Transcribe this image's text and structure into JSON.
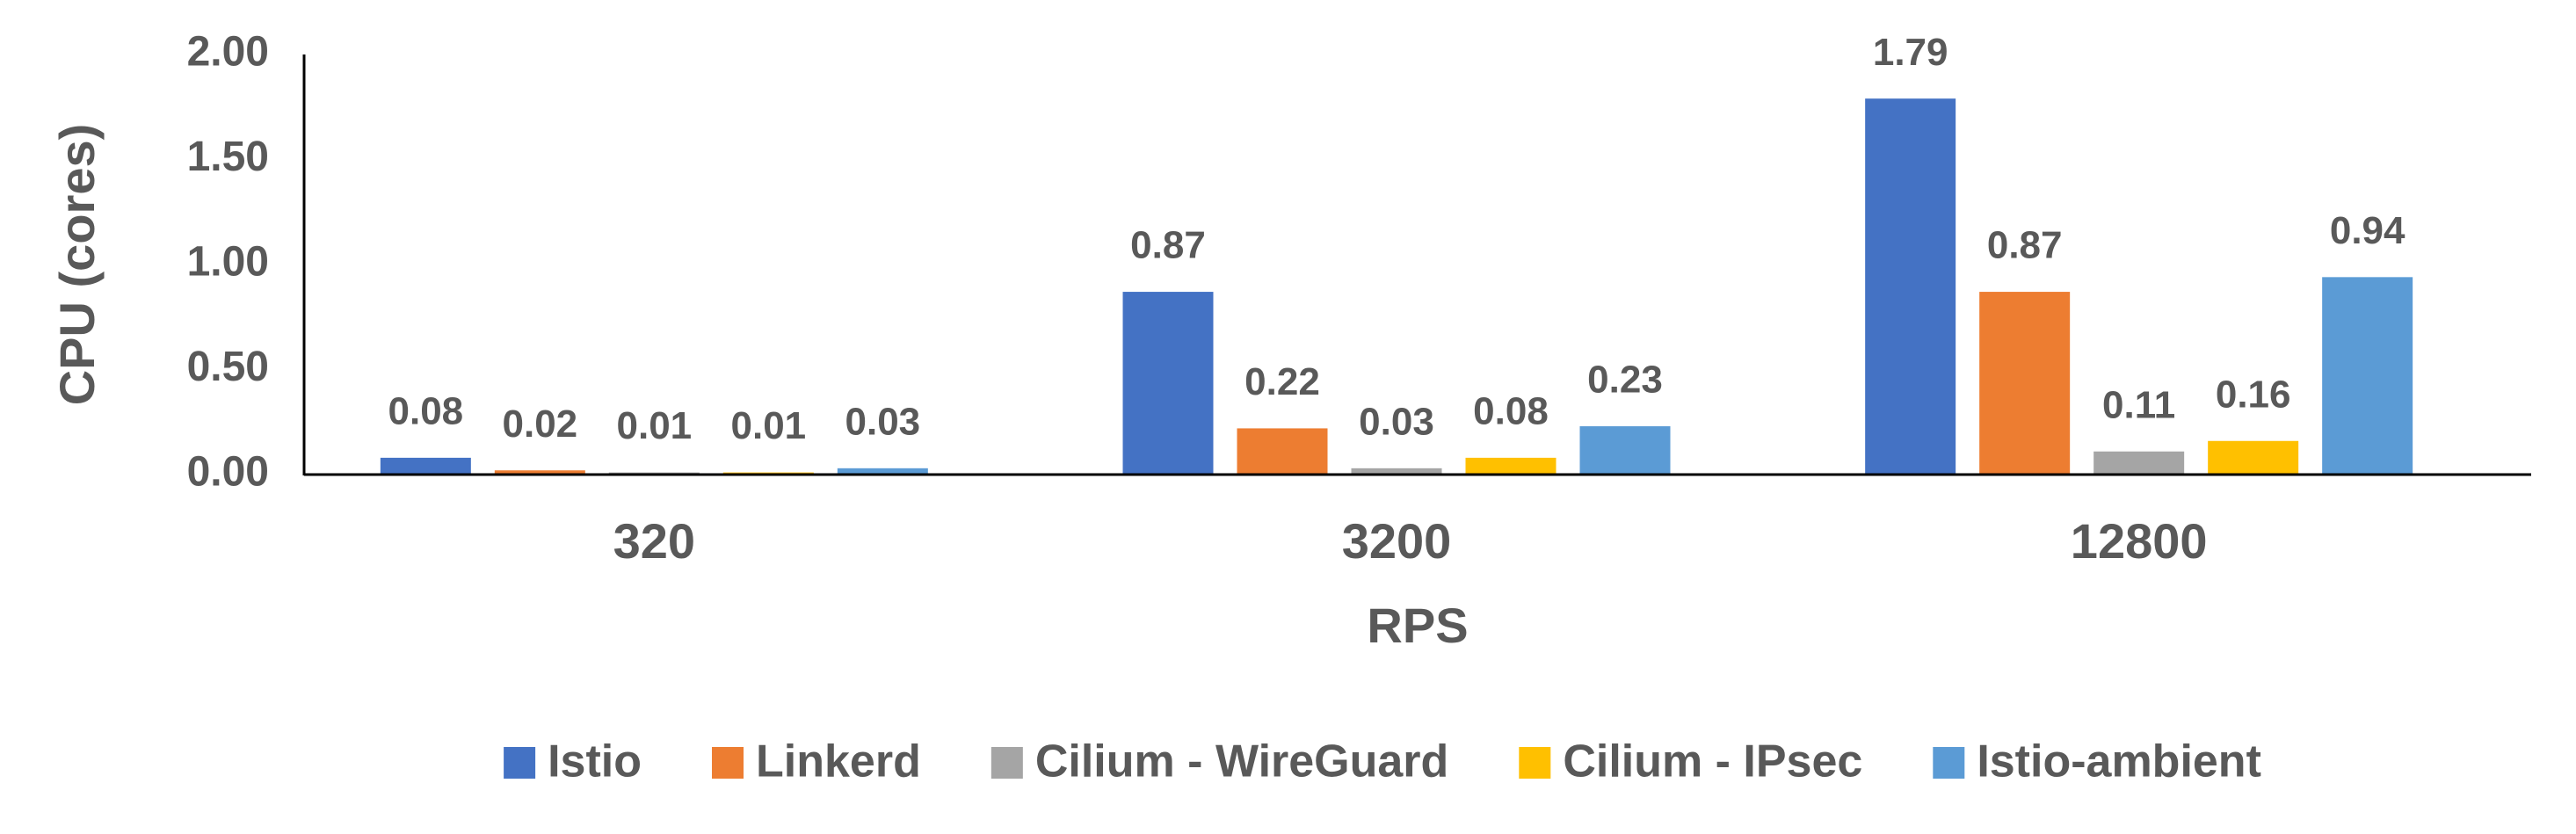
{
  "chart_data": {
    "type": "bar",
    "y_label": "CPU (cores)",
    "x_label": "RPS",
    "categories": [
      "320",
      "3200",
      "12800"
    ],
    "series": [
      {
        "name": "Istio",
        "color": "#4472c4",
        "values": [
          0.08,
          0.87,
          1.79
        ]
      },
      {
        "name": "Linkerd",
        "color": "#ed7d31",
        "values": [
          0.02,
          0.22,
          0.87
        ]
      },
      {
        "name": "Cilium - WireGuard",
        "color": "#a5a5a5",
        "values": [
          0.01,
          0.03,
          0.11
        ]
      },
      {
        "name": "Cilium - IPsec",
        "color": "#ffc000",
        "values": [
          0.01,
          0.08,
          0.16
        ]
      },
      {
        "name": "Istio-ambient",
        "color": "#5b9bd5",
        "values": [
          0.03,
          0.23,
          0.94
        ]
      }
    ],
    "ylim": [
      0,
      2
    ],
    "yticks": [
      {
        "value": 0,
        "label": "0.00"
      },
      {
        "value": 0.5,
        "label": "0.50"
      },
      {
        "value": 1,
        "label": "1.00"
      },
      {
        "value": 1.5,
        "label": "1.50"
      },
      {
        "value": 2,
        "label": "2.00"
      }
    ],
    "grid": false,
    "legend": "bottom"
  }
}
